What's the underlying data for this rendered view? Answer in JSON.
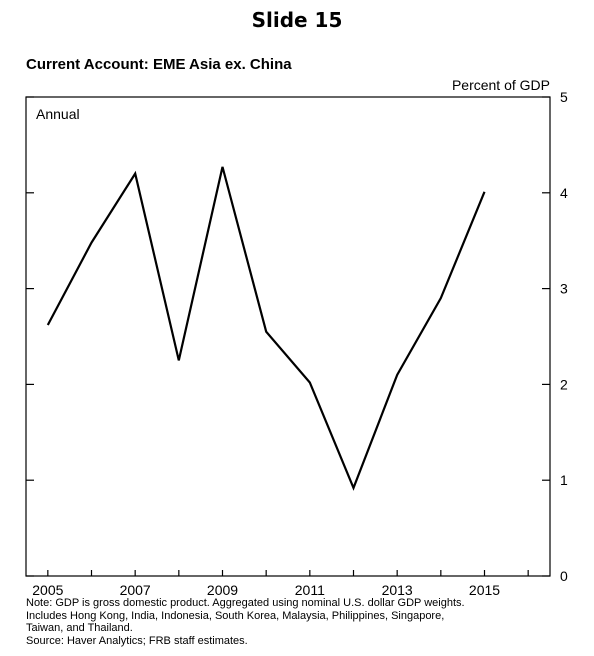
{
  "slide_title": "Slide 15",
  "chart_data": {
    "type": "line",
    "title": "Current Account: EME Asia ex. China",
    "ylabel": "Percent of GDP",
    "frequency_label": "Annual",
    "x": [
      2005,
      2006,
      2007,
      2008,
      2009,
      2010,
      2011,
      2012,
      2013,
      2014,
      2015
    ],
    "x_tick_labels": [
      "2005",
      "2007",
      "2009",
      "2011",
      "2013",
      "2015"
    ],
    "xlim": [
      2004.5,
      2016.5
    ],
    "ylim": [
      0,
      5
    ],
    "y_ticks": [
      0,
      1,
      2,
      3,
      4,
      5
    ],
    "y_tick_labels": [
      "0",
      "1",
      "2",
      "3",
      "4",
      "5"
    ],
    "series": [
      {
        "values": [
          2.62,
          3.48,
          4.2,
          2.25,
          4.27,
          2.55,
          2.02,
          0.92,
          2.1,
          2.9,
          4.01
        ]
      }
    ],
    "line_color": "#000000",
    "grid": false,
    "axis_tick_side": "right"
  },
  "notes": [
    "Note: GDP is gross domestic product. Aggregated using nominal U.S. dollar GDP weights.",
    "Includes Hong Kong, India, Indonesia, South Korea, Malaysia, Philippines, Singapore,",
    "Taiwan, and Thailand.",
    "Source: Haver Analytics; FRB staff estimates."
  ]
}
